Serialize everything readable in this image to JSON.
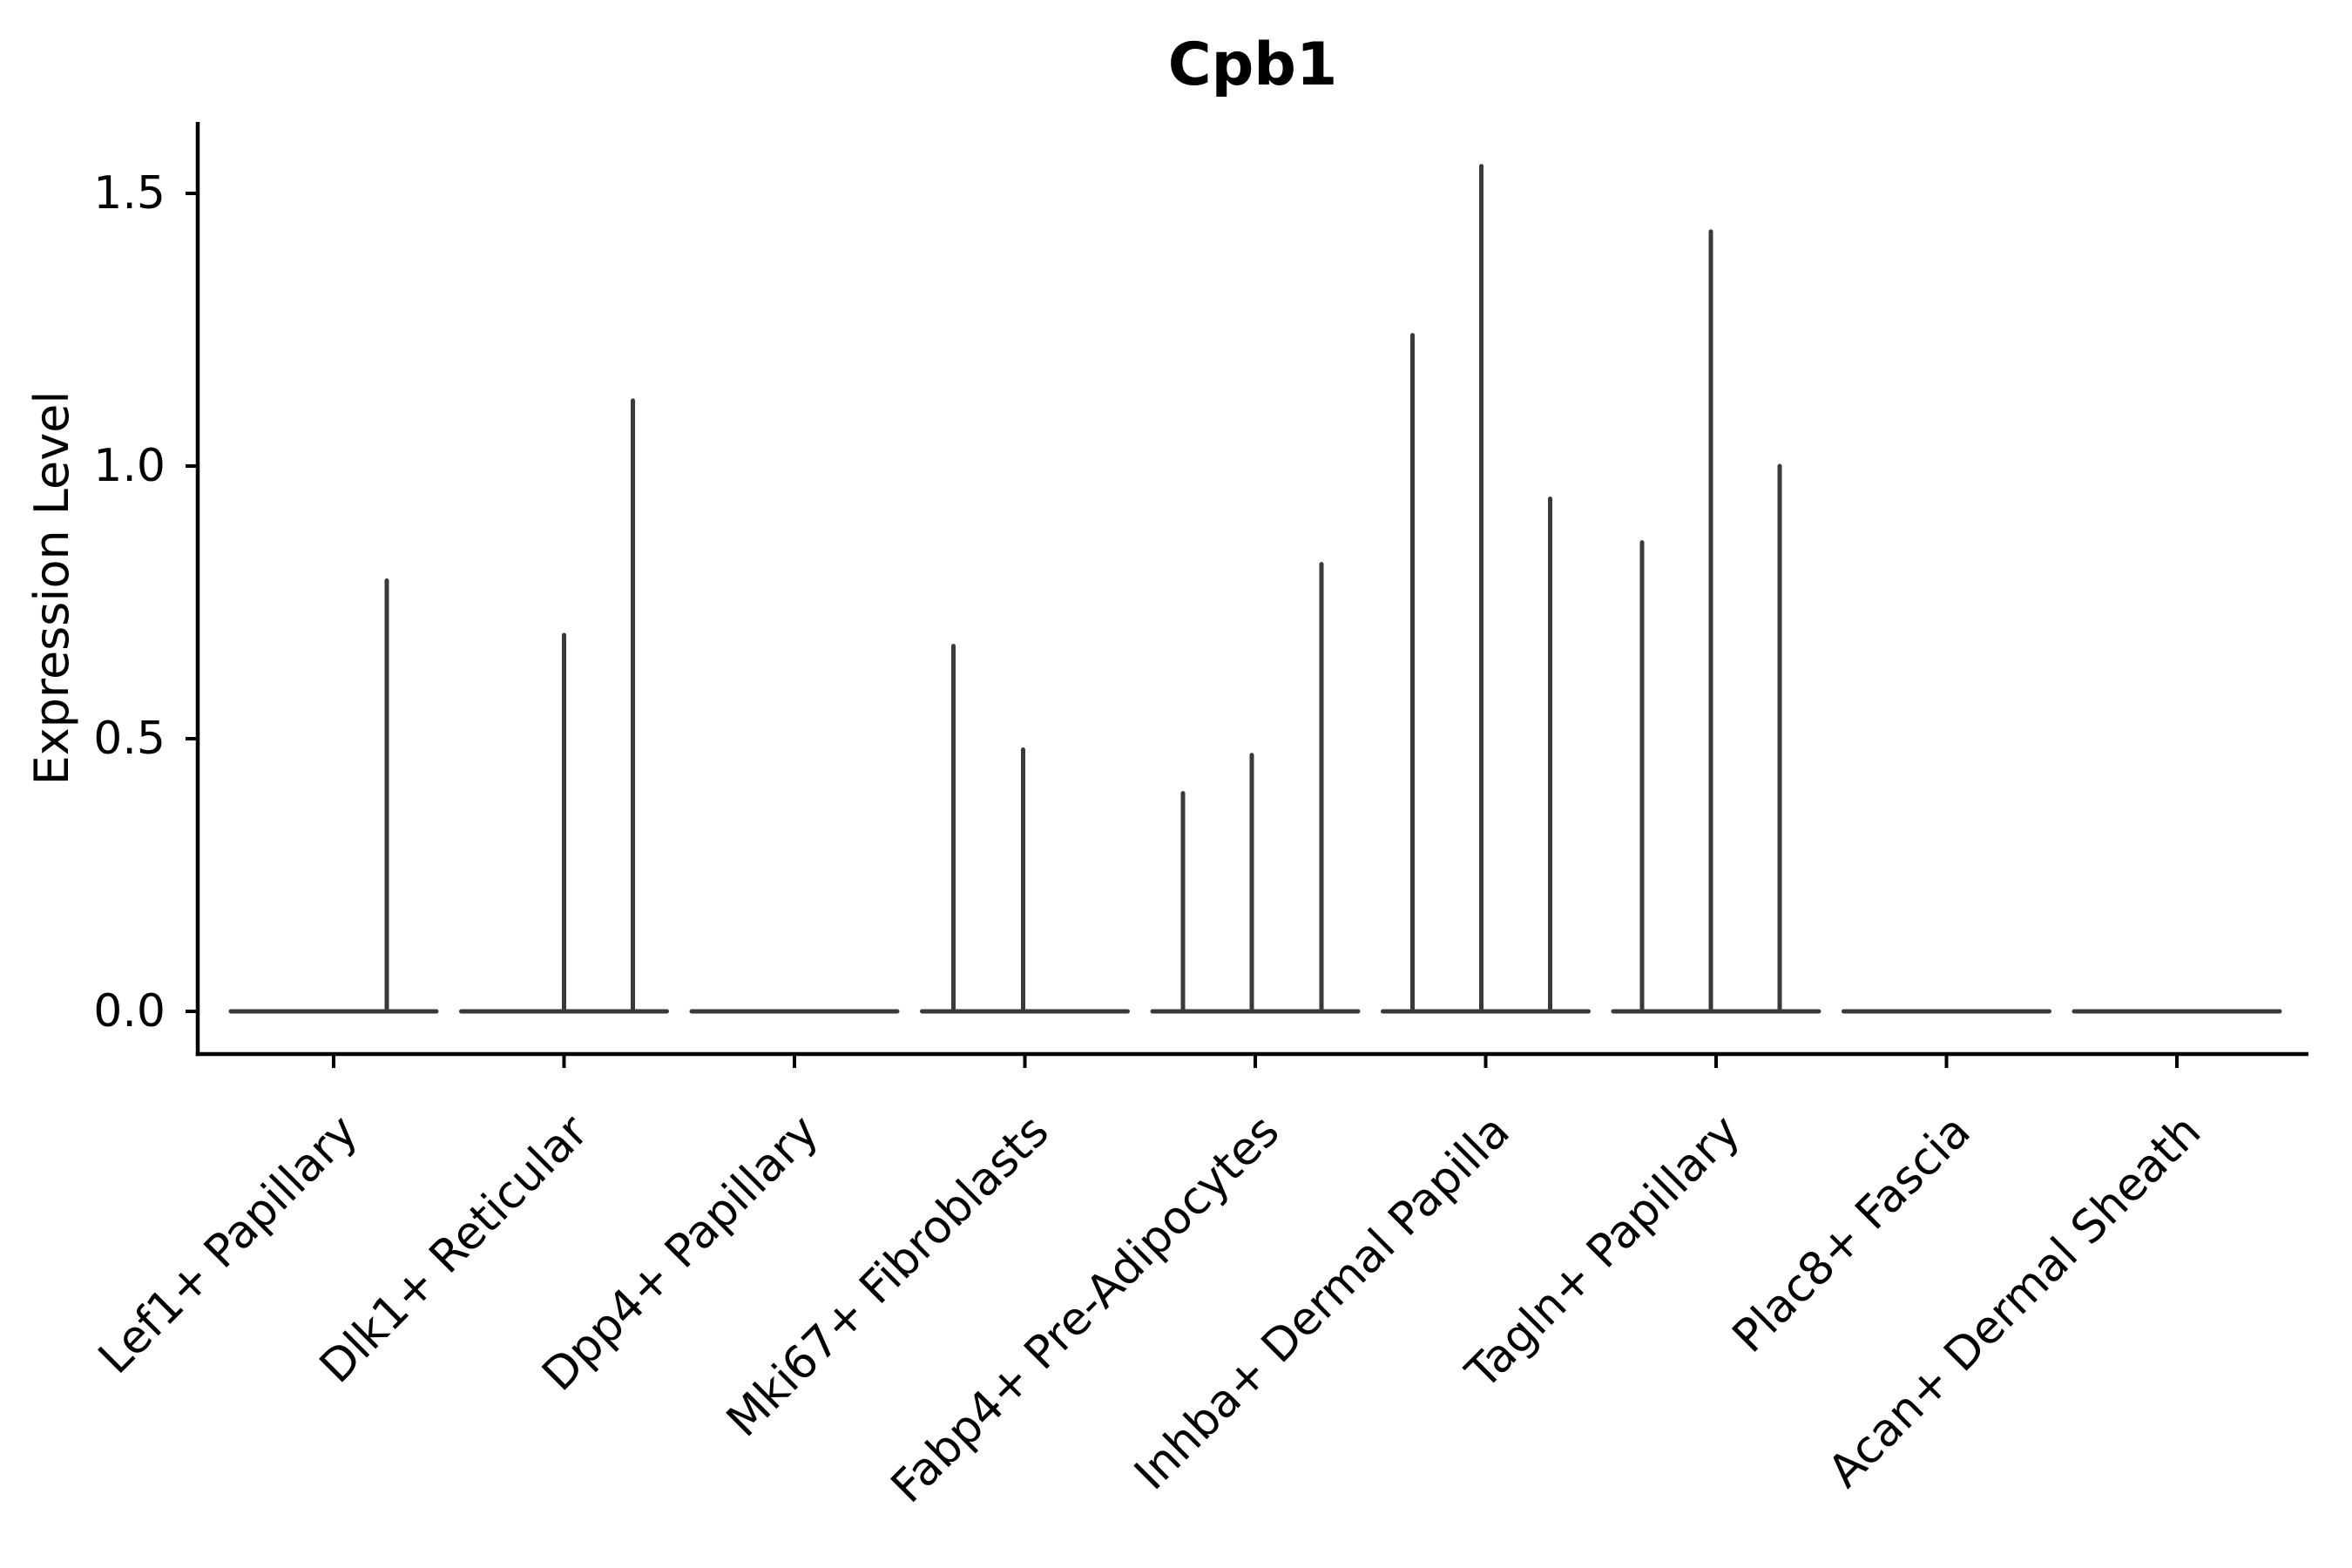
{
  "chart_data": {
    "type": "violin",
    "title": "Cpb1",
    "xlabel": "",
    "ylabel": "Expression Level",
    "ytick_labels": [
      "0.0",
      "0.5",
      "1.0",
      "1.5"
    ],
    "ytick_values": [
      0.0,
      0.5,
      1.0,
      1.5
    ],
    "ylim": [
      -0.08,
      1.63
    ],
    "grid": false,
    "legend": "none",
    "baseline_value": 0.0,
    "categories": [
      "Lef1+ Papillary",
      "Dlk1+ Reticular",
      "Dpp4+ Papillary",
      "Mki67+ Fibroblasts",
      "Fabp4+ Pre-Adipocytes",
      "Inhba+ Dermal Papilla",
      "Tagln+ Papillary",
      "Plac8+ Fascia",
      "Acan+ Dermal Sheath"
    ],
    "series": [
      {
        "category": "Lef1+ Papillary",
        "spikes": [
          {
            "dx": 61,
            "value": 0.79
          }
        ]
      },
      {
        "category": "Dlk1+ Reticular",
        "spikes": [
          {
            "dx": 0,
            "value": 0.69
          },
          {
            "dx": 79,
            "value": 1.12
          }
        ]
      },
      {
        "category": "Dpp4+ Papillary",
        "spikes": []
      },
      {
        "category": "Mki67+ Fibroblasts",
        "spikes": [
          {
            "dx": -82,
            "value": 0.67
          },
          {
            "dx": -2,
            "value": 0.48
          }
        ]
      },
      {
        "category": "Fabp4+ Pre-Adipocytes",
        "spikes": [
          {
            "dx": -83,
            "value": 0.4
          },
          {
            "dx": -4,
            "value": 0.47
          },
          {
            "dx": 76,
            "value": 0.82
          }
        ]
      },
      {
        "category": "Inhba+ Dermal Papilla",
        "spikes": [
          {
            "dx": -84,
            "value": 1.24
          },
          {
            "dx": -5,
            "value": 1.55
          },
          {
            "dx": 74,
            "value": 0.94
          }
        ]
      },
      {
        "category": "Tagln+ Papillary",
        "spikes": [
          {
            "dx": -85,
            "value": 0.86
          },
          {
            "dx": -6,
            "value": 1.43
          },
          {
            "dx": 73,
            "value": 1.0
          }
        ]
      },
      {
        "category": "Plac8+ Fascia",
        "spikes": []
      },
      {
        "category": "Acan+ Dermal Sheath",
        "spikes": []
      }
    ],
    "colors": {
      "violin": "#3a3a3a",
      "axis": "#000000",
      "background": "#ffffff"
    }
  }
}
